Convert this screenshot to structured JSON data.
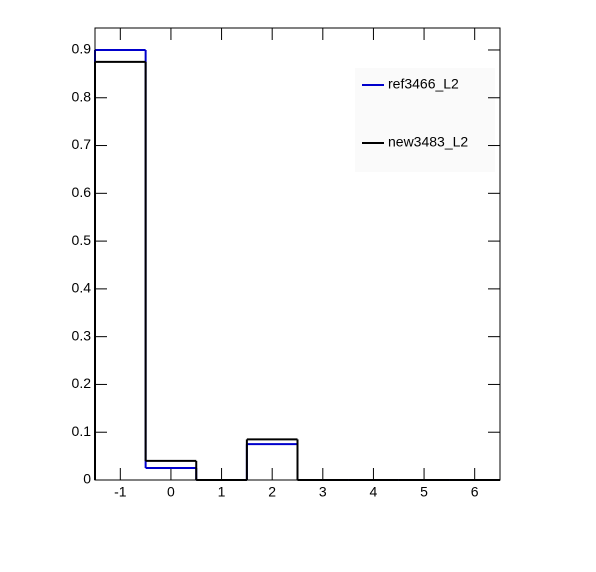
{
  "chart_data": {
    "type": "histogram",
    "bins": [
      -1.5,
      -0.5,
      0.5,
      1.5,
      2.5,
      3.5,
      4.5,
      5.5,
      6.5
    ],
    "series": [
      {
        "name": "ref3466_L2",
        "color": "#0000cc",
        "values": [
          0.9,
          0.025,
          0,
          0.075,
          0,
          0,
          0,
          0
        ]
      },
      {
        "name": "new3483_L2",
        "color": "#000000",
        "values": [
          0.875,
          0.04,
          0,
          0.085,
          0,
          0,
          0,
          0
        ]
      }
    ],
    "xlim": [
      -1.5,
      6.5
    ],
    "xticks": [
      -1,
      0,
      1,
      2,
      3,
      4,
      5,
      6
    ],
    "ylim": [
      0,
      0.946
    ],
    "yticks": [
      0,
      0.1,
      0.2,
      0.3,
      0.4,
      0.5,
      0.6,
      0.7,
      0.8,
      0.9
    ]
  }
}
